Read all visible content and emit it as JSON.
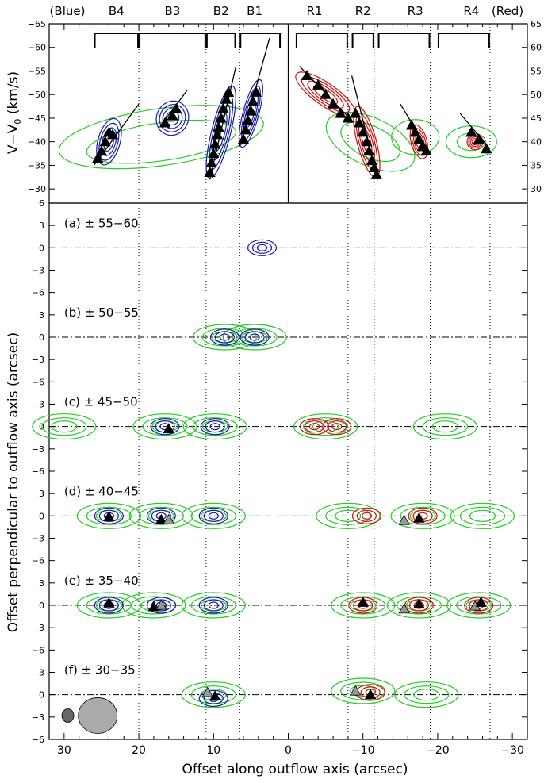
{
  "chart_data": {
    "type": "contour",
    "xlabel": "Offset along outflow axis (arcsec)",
    "xlim": [
      32,
      -32
    ],
    "xticks": [
      30,
      20,
      10,
      0,
      -10,
      -20,
      -30
    ],
    "xtick_labels": [
      "30",
      "20",
      "10",
      "0",
      "−10",
      "−20",
      "−30"
    ],
    "pv_panel": {
      "ylabel_left": "V−V",
      "ylabel_sub": "0",
      "ylabel_unit": " (km/s)",
      "left_ylim": [
        -65,
        -27
      ],
      "left_yticks": [
        -65,
        -60,
        -55,
        -50,
        -45,
        -40,
        -35,
        -30
      ],
      "left_ytick_labels": [
        "−65",
        "−60",
        "−55",
        "−50",
        "−45",
        "−40",
        "−35",
        "−30"
      ],
      "right_yticks": [
        65,
        60,
        55,
        50,
        45,
        40,
        35,
        30
      ],
      "right_ytick_labels": [
        "65",
        "60",
        "55",
        "50",
        "45",
        "40",
        "35",
        "30"
      ],
      "side_labels": [
        "(Blue)",
        "(Red)"
      ],
      "knots": [
        {
          "name": "B4",
          "x": 23.0
        },
        {
          "name": "B3",
          "x": 15.5
        },
        {
          "name": "B2",
          "x": 9.0
        },
        {
          "name": "B1",
          "x": 4.5
        },
        {
          "name": "R1",
          "x": -3.5
        },
        {
          "name": "R2",
          "x": -10.0
        },
        {
          "name": "R3",
          "x": -17.0
        },
        {
          "name": "R4",
          "x": -24.5
        }
      ],
      "knot_dotted_lines_x": [
        26,
        20,
        11,
        6.5,
        -8,
        -11.5,
        -19,
        -27
      ],
      "knot_bracket_ranges": [
        [
          26,
          20
        ],
        [
          20,
          11
        ],
        [
          11,
          7
        ],
        [
          6.5,
          1
        ],
        [
          -1,
          -8
        ],
        [
          -8.5,
          -11.5
        ],
        [
          -12,
          -19
        ],
        [
          -20,
          -27
        ]
      ],
      "blue_markers": [
        {
          "x": 25.5,
          "v": -36.5
        },
        {
          "x": 25.0,
          "v": -38.0
        },
        {
          "x": 24.5,
          "v": -40.0
        },
        {
          "x": 24.0,
          "v": -42.0
        },
        {
          "x": 23.5,
          "v": -41.5
        },
        {
          "x": 16.5,
          "v": -44.0
        },
        {
          "x": 15.5,
          "v": -45.5
        },
        {
          "x": 15.0,
          "v": -47.0
        },
        {
          "x": 10.5,
          "v": -33.5
        },
        {
          "x": 10.3,
          "v": -35.5
        },
        {
          "x": 10.0,
          "v": -37.5
        },
        {
          "x": 9.8,
          "v": -39.5
        },
        {
          "x": 9.5,
          "v": -41.5
        },
        {
          "x": 9.3,
          "v": -43.0
        },
        {
          "x": 9.0,
          "v": -45.0
        },
        {
          "x": 8.7,
          "v": -47.0
        },
        {
          "x": 8.3,
          "v": -49.0
        },
        {
          "x": 8.0,
          "v": -50.5
        },
        {
          "x": 6.0,
          "v": -40.5
        },
        {
          "x": 5.7,
          "v": -42.5
        },
        {
          "x": 5.4,
          "v": -44.5
        },
        {
          "x": 5.0,
          "v": -46.5
        },
        {
          "x": 4.7,
          "v": -48.5
        },
        {
          "x": 4.3,
          "v": -50.5
        }
      ],
      "red_markers": [
        {
          "x": -2.5,
          "v": -54.0
        },
        {
          "x": -4.0,
          "v": -52.0
        },
        {
          "x": -5.0,
          "v": -50.0
        },
        {
          "x": -6.0,
          "v": -48.0
        },
        {
          "x": -7.0,
          "v": -46.0
        },
        {
          "x": -8.0,
          "v": -45.0
        },
        {
          "x": -9.0,
          "v": -46.0
        },
        {
          "x": -9.5,
          "v": -44.0
        },
        {
          "x": -10.0,
          "v": -42.0
        },
        {
          "x": -10.5,
          "v": -40.0
        },
        {
          "x": -10.8,
          "v": -38.0
        },
        {
          "x": -11.2,
          "v": -36.0
        },
        {
          "x": -11.5,
          "v": -34.5
        },
        {
          "x": -11.8,
          "v": -33.0
        },
        {
          "x": -16.5,
          "v": -43.5
        },
        {
          "x": -17.0,
          "v": -42.0
        },
        {
          "x": -17.5,
          "v": -40.5
        },
        {
          "x": -18.0,
          "v": -39.0
        },
        {
          "x": -18.5,
          "v": -38.0
        },
        {
          "x": -24.5,
          "v": -42.0
        },
        {
          "x": -25.5,
          "v": -40.5
        },
        {
          "x": -26.5,
          "v": -38.5
        }
      ],
      "fit_lines": [
        {
          "x1": 26.0,
          "v1": -35.0,
          "x2": 20.0,
          "v2": -48.0
        },
        {
          "x1": 17.0,
          "v1": -43.5,
          "x2": 13.5,
          "v2": -51.0
        },
        {
          "x1": 10.5,
          "v1": -32.0,
          "x2": 7.0,
          "v2": -56.0
        },
        {
          "x1": 6.5,
          "v1": -39.0,
          "x2": 2.5,
          "v2": -62.0
        },
        {
          "x1": -1.5,
          "v1": -56.0,
          "x2": -8.5,
          "v2": -44.5
        },
        {
          "x1": -8.5,
          "v1": -54.0,
          "x2": -12.0,
          "v2": -32.0
        },
        {
          "x1": -15.0,
          "v1": -48.0,
          "x2": -19.0,
          "v2": -37.5
        },
        {
          "x1": -23.0,
          "v1": -46.0,
          "x2": -27.0,
          "v2": -38.5
        }
      ]
    },
    "channel_panels": {
      "ylabel": "Offset perpendicular to outflow axis (arcsec)",
      "offset_range": [
        -6,
        6
      ],
      "offset_ticks": [
        -6,
        -3,
        0,
        3
      ],
      "offset_tick_labels": [
        "−6",
        "−3",
        "0",
        "3"
      ],
      "top_tick_label": "6",
      "panels": [
        {
          "label": "(a) ± 55−60",
          "velocity_range": [
            55,
            60
          ],
          "blue_peaks": [
            {
              "x": 3.5,
              "y": 0.0
            }
          ],
          "red_peaks": [],
          "green_peaks": [],
          "markers": []
        },
        {
          "label": "(b) ± 50−55",
          "velocity_range": [
            50,
            55
          ],
          "blue_peaks": [
            {
              "x": 8.5,
              "y": 0.0
            },
            {
              "x": 4.5,
              "y": 0.0
            }
          ],
          "red_peaks": [],
          "green_peaks": [
            {
              "x": 8.5,
              "y": 0.0
            },
            {
              "x": 4.5,
              "y": 0.0
            }
          ],
          "markers": []
        },
        {
          "label": "(c) ± 45−50",
          "velocity_range": [
            45,
            50
          ],
          "blue_peaks": [
            {
              "x": 16.5,
              "y": 0.0
            },
            {
              "x": 9.8,
              "y": 0.0
            }
          ],
          "red_peaks": [
            {
              "x": -3.5,
              "y": 0.0
            },
            {
              "x": -6.5,
              "y": 0.0
            }
          ],
          "green_peaks": [
            {
              "x": 30.0,
              "y": 0.0
            },
            {
              "x": 16.5,
              "y": 0.0
            },
            {
              "x": 9.8,
              "y": 0.0
            },
            {
              "x": -5.0,
              "y": 0.0
            },
            {
              "x": -21.0,
              "y": 0.0
            }
          ],
          "markers": [
            {
              "x": 16.0,
              "y": -0.3,
              "fill": "black"
            }
          ]
        },
        {
          "label": "(d) ± 40−45",
          "velocity_range": [
            40,
            45
          ],
          "blue_peaks": [
            {
              "x": 24.0,
              "y": 0.0
            },
            {
              "x": 17.0,
              "y": 0.0
            },
            {
              "x": 10.0,
              "y": 0.0
            }
          ],
          "red_peaks": [
            {
              "x": -10.5,
              "y": 0.0
            },
            {
              "x": -18.0,
              "y": 0.0
            }
          ],
          "green_peaks": [
            {
              "x": 24.0,
              "y": 0.0
            },
            {
              "x": 17.0,
              "y": 0.0
            },
            {
              "x": 10.0,
              "y": 0.0
            },
            {
              "x": -8.0,
              "y": 0.0
            },
            {
              "x": -18.0,
              "y": 0.0
            },
            {
              "x": -26.0,
              "y": 0.0
            }
          ],
          "markers": [
            {
              "x": 24.0,
              "y": -0.1,
              "fill": "black"
            },
            {
              "x": 17.0,
              "y": -0.5,
              "fill": "black"
            },
            {
              "x": 16.0,
              "y": -0.5,
              "fill": "gray"
            },
            {
              "x": -15.5,
              "y": -0.6,
              "fill": "gray"
            },
            {
              "x": -17.5,
              "y": -0.3,
              "fill": "black"
            }
          ]
        },
        {
          "label": "(e) ± 35−40",
          "velocity_range": [
            35,
            40
          ],
          "blue_peaks": [
            {
              "x": 24.0,
              "y": 0.0
            },
            {
              "x": 17.0,
              "y": 0.0
            },
            {
              "x": 10.0,
              "y": 0.0
            }
          ],
          "red_peaks": [
            {
              "x": -10.0,
              "y": 0.0
            },
            {
              "x": -17.5,
              "y": 0.0
            },
            {
              "x": -25.5,
              "y": 0.0
            }
          ],
          "green_peaks": [
            {
              "x": 24.0,
              "y": 0.0
            },
            {
              "x": 18.0,
              "y": 0.0
            },
            {
              "x": 10.0,
              "y": 0.0
            },
            {
              "x": -10.0,
              "y": 0.0
            },
            {
              "x": -17.5,
              "y": 0.0
            },
            {
              "x": -25.5,
              "y": 0.0
            }
          ],
          "markers": [
            {
              "x": 24.0,
              "y": 0.3,
              "fill": "black"
            },
            {
              "x": 18.0,
              "y": -0.2,
              "fill": "black"
            },
            {
              "x": 17.0,
              "y": 0.0,
              "fill": "gray"
            },
            {
              "x": -10.0,
              "y": 0.4,
              "fill": "black"
            },
            {
              "x": -15.5,
              "y": -0.5,
              "fill": "gray"
            },
            {
              "x": -17.5,
              "y": 0.2,
              "fill": "black"
            },
            {
              "x": -25.0,
              "y": -0.1,
              "fill": "gray"
            },
            {
              "x": -25.8,
              "y": 0.4,
              "fill": "black"
            }
          ]
        },
        {
          "label": "(f) ± 30−35",
          "velocity_range": [
            30,
            35
          ],
          "blue_peaks": [
            {
              "x": 10.0,
              "y": -0.5
            }
          ],
          "red_peaks": [
            {
              "x": -11.0,
              "y": 0.3
            }
          ],
          "green_peaks": [
            {
              "x": 10.0,
              "y": 0.0
            },
            {
              "x": -10.0,
              "y": 0.5
            },
            {
              "x": -18.5,
              "y": 0.0
            }
          ],
          "markers": [
            {
              "x": 10.8,
              "y": 0.3,
              "fill": "gray"
            },
            {
              "x": 9.8,
              "y": -0.2,
              "fill": "black"
            },
            {
              "x": -9.0,
              "y": 0.5,
              "fill": "gray"
            },
            {
              "x": -11.0,
              "y": 0.0,
              "fill": "black"
            }
          ]
        }
      ]
    },
    "beams": [
      {
        "name": "small beam",
        "x": 29.5,
        "y": -2.8,
        "rx_arcsec": 0.8,
        "ry_arcsec": 0.9
      },
      {
        "name": "large beam",
        "x": 25.5,
        "y": -2.8,
        "rx_arcsec": 2.6,
        "ry_arcsec": 2.4
      }
    ],
    "colors": {
      "co_contours": "#22cc22",
      "blue_lobe": "#1a1aaa",
      "red_lobe": "#cc1111",
      "markers": "#000000",
      "gray_markers": "#999999"
    }
  }
}
